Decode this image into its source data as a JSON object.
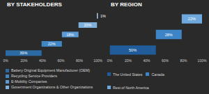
{
  "chart_data": [
    {
      "type": "bar",
      "title": "BY STAKEHOLDERS",
      "orientation": "horizontal",
      "stacked": true,
      "data_labels": true,
      "tick_labels": "x",
      "grid": false,
      "legend": "bottom",
      "categories": [
        null,
        null,
        null,
        null,
        null
      ],
      "series": [
        {
          "name": "Battery Original Equipment Manufacturer (OEM)",
          "color": "#2b6aa3",
          "values": [
            39,
            null,
            null,
            null,
            null
          ],
          "value_labels": [
            "39%",
            null,
            null,
            null,
            null
          ]
        },
        {
          "name": "Recycling Service Providers",
          "color": "#3f86c4",
          "values": [
            null,
            22,
            null,
            null,
            null
          ],
          "value_labels": [
            null,
            "22%",
            null,
            null,
            null
          ]
        },
        {
          "name": "E-Mobility Companies",
          "color": "#5b9bd5",
          "values": [
            null,
            null,
            18,
            null,
            null
          ],
          "value_labels": [
            null,
            null,
            "18%",
            null,
            null
          ]
        },
        {
          "name": "Government Organizations & Other Organizations",
          "color": "#7fb0dc",
          "values": [
            null,
            null,
            null,
            20,
            null
          ],
          "value_labels": [
            null,
            null,
            null,
            "20%",
            null
          ]
        },
        {
          "color": "#a9c8e8",
          "values": [
            null,
            null,
            null,
            null,
            1
          ],
          "value_labels": [
            null,
            null,
            null,
            null,
            "1%"
          ]
        }
      ],
      "xlim": [
        0,
        100
      ],
      "xticks": [
        {
          "value": 0,
          "label": "0%"
        },
        {
          "value": 20,
          "label": "20%"
        },
        {
          "value": 40,
          "label": "40%"
        },
        {
          "value": 60,
          "label": "60%"
        },
        {
          "value": 80,
          "label": "80%"
        },
        {
          "value": 100,
          "label": "100%"
        }
      ]
    },
    {
      "type": "bar",
      "title": "BY REGION",
      "orientation": "horizontal",
      "stacked": true,
      "data_labels": true,
      "tick_labels": "x",
      "grid": false,
      "legend": "bottom",
      "categories": [
        null,
        null,
        null
      ],
      "series": [
        {
          "name": "The United States",
          "color": "#1f5c99",
          "values": [
            50,
            null,
            null
          ],
          "value_labels": [
            "50%",
            null,
            null
          ]
        },
        {
          "name": "Canada",
          "color": "#3d85c6",
          "values": [
            null,
            28,
            null
          ],
          "value_labels": [
            null,
            "28%",
            null
          ]
        },
        {
          "name": "Rest of North America",
          "color": "#6fa8dc",
          "values": [
            null,
            null,
            22
          ],
          "value_labels": [
            null,
            null,
            "22%"
          ]
        }
      ],
      "xlim": [
        0,
        100
      ],
      "xticks": [
        {
          "value": 0,
          "label": "0%"
        },
        {
          "value": 20,
          "label": "20%"
        },
        {
          "value": 40,
          "label": "40%"
        },
        {
          "value": 60,
          "label": "60%"
        },
        {
          "value": 80,
          "label": "80%"
        },
        {
          "value": 100,
          "label": "100%"
        }
      ]
    }
  ]
}
